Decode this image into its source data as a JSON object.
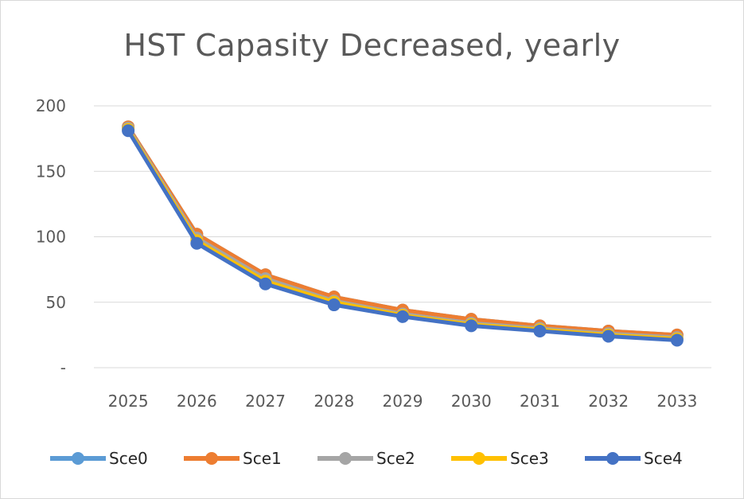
{
  "chart_data": {
    "type": "line",
    "title": "HST Capasity Decreased, yearly",
    "xlabel": "",
    "ylabel": "",
    "categories": [
      "2025",
      "2026",
      "2027",
      "2028",
      "2029",
      "2030",
      "2031",
      "2032",
      "2033"
    ],
    "y_ticks": [
      "-",
      "50",
      "100",
      "150",
      "200"
    ],
    "ylim": [
      0,
      200
    ],
    "grid": true,
    "legend_position": "bottom",
    "series": [
      {
        "name": "Sce0",
        "color": "#5b9bd5",
        "values": [
          184,
          102,
          71,
          54,
          44,
          37,
          32,
          28,
          25
        ]
      },
      {
        "name": "Sce1",
        "color": "#ed7d31",
        "values": [
          184,
          102,
          71,
          54,
          44,
          37,
          32,
          28,
          25
        ]
      },
      {
        "name": "Sce2",
        "color": "#a5a5a5",
        "values": [
          183,
          99,
          68,
          51,
          41,
          34,
          30,
          26,
          23
        ]
      },
      {
        "name": "Sce3",
        "color": "#ffc000",
        "values": [
          182,
          97,
          66,
          50,
          40,
          33,
          29,
          25,
          22
        ]
      },
      {
        "name": "Sce4",
        "color": "#4472c4",
        "values": [
          181,
          95,
          64,
          48,
          39,
          32,
          28,
          24,
          21
        ]
      }
    ]
  }
}
